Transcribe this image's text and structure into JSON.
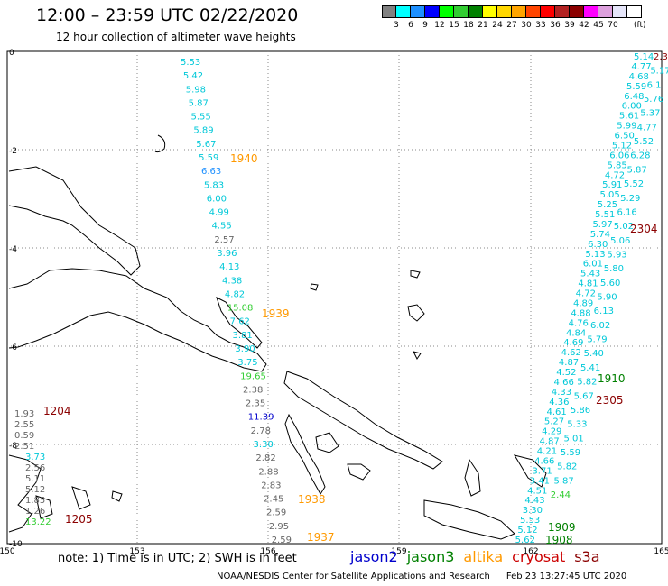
{
  "header": {
    "title": "12:00 – 23:59 UTC 02/22/2020",
    "subtitle": "12 hour collection of altimeter wave heights"
  },
  "legend": {
    "colors": [
      "#808080",
      "#00ffff",
      "#1e90ff",
      "#0000ff",
      "#00ff00",
      "#32cd32",
      "#008000",
      "#ffff00",
      "#ffd700",
      "#ffa500",
      "#ff4500",
      "#ff0000",
      "#b22222",
      "#8b0000",
      "#ff00ff",
      "#dda0dd",
      "#e6e6fa",
      "#ffffff"
    ],
    "labels": [
      "3",
      "6",
      "9",
      "12",
      "15",
      "18",
      "21",
      "24",
      "27",
      "30",
      "33",
      "36",
      "39",
      "42",
      "45",
      "70"
    ],
    "unit": "(ft)"
  },
  "axes": {
    "x_ticks": [
      "150",
      "153",
      "156",
      "159",
      "162",
      "165"
    ],
    "y_ticks": [
      "0",
      "-2",
      "-4",
      "-6",
      "-8",
      "-10"
    ]
  },
  "passes": [
    {
      "label": "1940",
      "color": "#ff9900"
    },
    {
      "label": "1939",
      "color": "#ff9900"
    },
    {
      "label": "1938",
      "color": "#ff9900"
    },
    {
      "label": "1937",
      "color": "#ff9900"
    },
    {
      "label": "1204",
      "color": "#8b0000"
    },
    {
      "label": "1205",
      "color": "#8b0000"
    },
    {
      "label": "2304",
      "color": "#8b0000"
    },
    {
      "label": "2305",
      "color": "#8b0000"
    },
    {
      "label": "1910",
      "color": "#008000"
    },
    {
      "label": "1909",
      "color": "#008000"
    },
    {
      "label": "1908",
      "color": "#008000"
    }
  ],
  "readings": {
    "track_a": [
      "5.53",
      "5.42",
      "5.98",
      "5.87",
      "5.55",
      "5.89",
      "5.67",
      "5.59",
      "6.63",
      "5.83",
      "6.00",
      "4.99",
      "4.55",
      "2.57",
      "3.96",
      "4.13",
      "4.38",
      "4.82",
      "15.08",
      "7.62",
      "3.81",
      "3.90",
      "3.75",
      "19.65",
      "2.38",
      "2.35",
      "11.39",
      "2.78",
      "3.30",
      "2.82",
      "2.88",
      "2.83",
      "2.45",
      "2.59",
      "2.95",
      "2.59"
    ],
    "track_a_colors": [
      "#00c8d8",
      "#00c8d8",
      "#00c8d8",
      "#00c8d8",
      "#00c8d8",
      "#00c8d8",
      "#00c8d8",
      "#00c8d8",
      "#1e90ff",
      "#00c8d8",
      "#00c8d8",
      "#00c8d8",
      "#00c8d8",
      "#666666",
      "#00c8d8",
      "#00c8d8",
      "#00c8d8",
      "#00c8d8",
      "#32cd32",
      "#00c8d8",
      "#00c8d8",
      "#00c8d8",
      "#00c8d8",
      "#32cd32",
      "#666666",
      "#666666",
      "#0000cc",
      "#666666",
      "#00c8d8",
      "#666666",
      "#666666",
      "#666666",
      "#666666",
      "#666666",
      "#666666",
      "#666666"
    ],
    "track_b": [
      "1.93",
      "2.55",
      "0.59",
      "2.51",
      "3.73",
      "2.56",
      "5.11",
      "5.12",
      "1.85",
      "1.26",
      "13.22"
    ],
    "track_b_colors": [
      "#666666",
      "#666666",
      "#666666",
      "#666666",
      "#00c8d8",
      "#666666",
      "#666666",
      "#666666",
      "#666666",
      "#666666",
      "#32cd32"
    ],
    "track_c": [
      "5.14",
      "4.77",
      "4.68",
      "5.59",
      "6.48",
      "6.00",
      "5.61",
      "5.99",
      "6.50",
      "5.12",
      "6.06",
      "5.85",
      "4.72",
      "5.91",
      "5.05",
      "5.25",
      "5.51",
      "5.97",
      "5.74",
      "6.30",
      "5.13",
      "6.01",
      "5.43",
      "4.81",
      "4.72",
      "4.89",
      "4.88",
      "4.76",
      "4.84",
      "4.69",
      "4.62",
      "4.87",
      "4.52",
      "4.66",
      "4.33",
      "4.36",
      "4.61",
      "5.27",
      "4.29",
      "4.87",
      "4.21",
      "4.66",
      "3.71",
      "3.41",
      "4.51",
      "4.43",
      "3.30",
      "5.53",
      "5.12",
      "5.62"
    ],
    "track_c_colors": [
      "#00c8d8"
    ],
    "track_d": [
      "2.3",
      "5.17",
      "6.1",
      "5.76",
      "5.37",
      "4.77",
      "5.52",
      "6.28",
      "5.87",
      "5.52",
      "5.29",
      "6.16",
      "5.02",
      "5.06",
      "5.93",
      "5.80",
      "5.60",
      "5.90",
      "6.13",
      "6.02",
      "5.79",
      "5.40",
      "5.41",
      "5.82",
      "5.67",
      "5.86",
      "5.33",
      "5.01",
      "5.59",
      "5.82",
      "5.87",
      "2.44"
    ],
    "track_d_colors": [
      "#00c8d8"
    ]
  },
  "footer": {
    "note": "note:  1) Time is in UTC;  2) SWH is in feet",
    "satellites": [
      {
        "name": "jason2",
        "color": "#0000cc"
      },
      {
        "name": "jason3",
        "color": "#008000"
      },
      {
        "name": "altika",
        "color": "#ff9900"
      },
      {
        "name": "cryosat",
        "color": "#cc0000"
      },
      {
        "name": "s3a",
        "color": "#8b0000"
      }
    ],
    "credit": "NOAA/NESDIS Center for Satellite Applications and Research",
    "timestamp": "Feb 23 13:27:45 UTC 2020"
  }
}
